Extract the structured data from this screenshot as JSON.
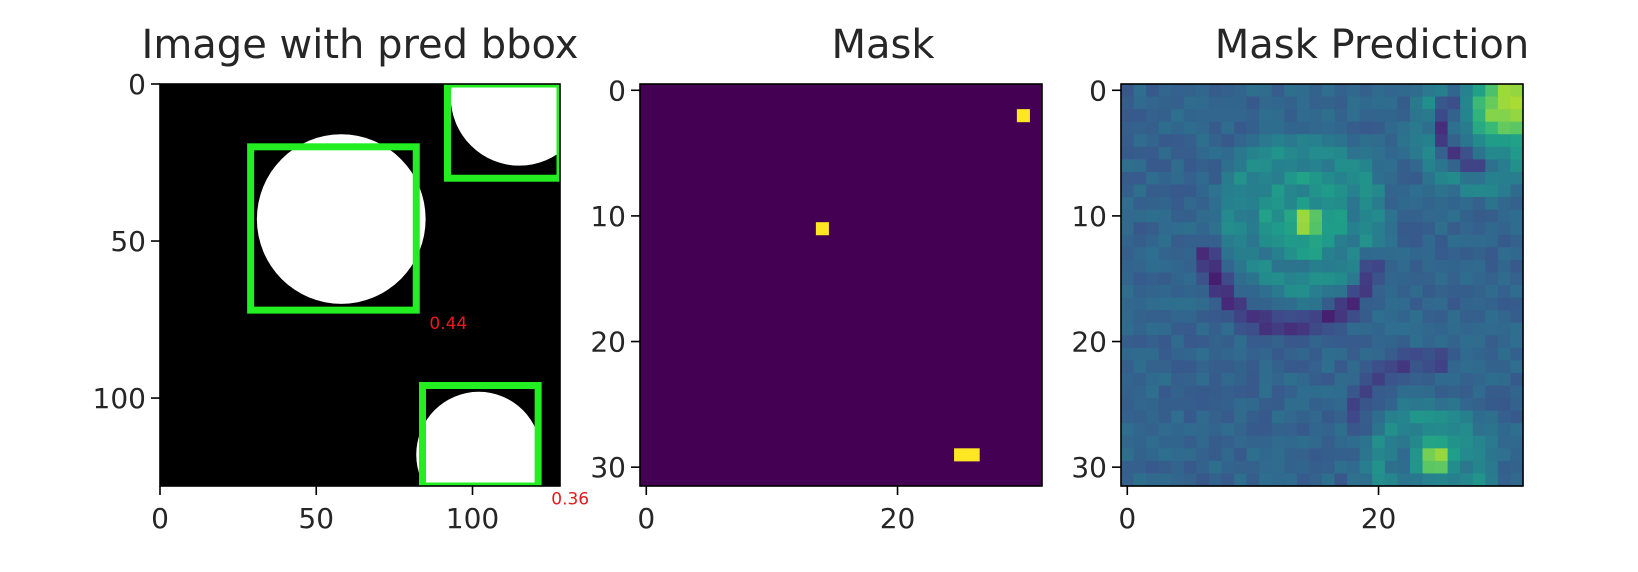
{
  "chart_data": [
    {
      "type": "heatmap",
      "title": "Image with pred bbox",
      "xlabel": "",
      "ylabel": "",
      "size": [
        128,
        128
      ],
      "xlim": [
        0,
        128
      ],
      "ylim": [
        128,
        0
      ],
      "x_ticks": [
        0,
        50,
        100
      ],
      "y_ticks": [
        0,
        50,
        100
      ],
      "x_tick_labels": [
        "0",
        "50",
        "100"
      ],
      "y_tick_labels": [
        "0",
        "50",
        "100"
      ],
      "background": "#000000",
      "box_color": "#22ee22",
      "circles": [
        {
          "cx": 58,
          "cy": 43,
          "r": 27
        },
        {
          "cx": 115,
          "cy": 4,
          "r": 22
        },
        {
          "cx": 102,
          "cy": 118,
          "r": 20
        }
      ],
      "boxes": [
        {
          "x1": 29,
          "y1": 20,
          "x2": 82,
          "y2": 72,
          "score": "0.44"
        },
        {
          "x1": 92,
          "y1": 0,
          "x2": 128,
          "y2": 30,
          "score": ""
        },
        {
          "x1": 84,
          "y1": 96,
          "x2": 121,
          "y2": 128,
          "score": "0.36"
        }
      ],
      "score_color": "#e41a1c"
    },
    {
      "type": "heatmap",
      "title": "Mask",
      "xlabel": "",
      "ylabel": "",
      "size": [
        32,
        32
      ],
      "x_ticks": [
        0,
        20
      ],
      "y_ticks": [
        0,
        10,
        20,
        30
      ],
      "x_tick_labels": [
        "0",
        "20"
      ],
      "y_tick_labels": [
        "0",
        "10",
        "20",
        "30"
      ],
      "colormap": "viridis",
      "background_value": 0,
      "hot_cells": [
        [
          30,
          2
        ],
        [
          14,
          11
        ],
        [
          25,
          29
        ],
        [
          26,
          29
        ]
      ]
    },
    {
      "type": "heatmap",
      "title": "Mask Prediction",
      "xlabel": "",
      "ylabel": "",
      "size": [
        32,
        32
      ],
      "x_ticks": [
        0,
        20
      ],
      "y_ticks": [
        0,
        10,
        20,
        30
      ],
      "x_tick_labels": [
        "0",
        "20"
      ],
      "y_tick_labels": [
        "0",
        "10",
        "20",
        "30"
      ],
      "colormap": "viridis",
      "baseline": 0.32,
      "blobs": [
        {
          "x": 14.2,
          "y": 10.4,
          "s": 0.9,
          "a": 0.62
        },
        {
          "x": 30,
          "y": 1.5,
          "s": 2.0,
          "a": 0.55
        },
        {
          "x": 24.5,
          "y": 29.3,
          "s": 1.1,
          "a": 0.55
        }
      ],
      "rings": [
        {
          "x": 14,
          "y": 10,
          "r": 2.8,
          "w": 0.75,
          "a": 0.22
        },
        {
          "x": 14,
          "y": 10,
          "r": 5.5,
          "w": 0.9,
          "a": 0.16
        },
        {
          "x": 28,
          "y": 3,
          "r": 4.5,
          "w": 0.8,
          "a": 0.14
        },
        {
          "x": 24,
          "y": 30,
          "r": 4.0,
          "w": 0.9,
          "a": 0.16
        }
      ],
      "troughs": [
        {
          "x": 13,
          "y": 12,
          "r": 6.8,
          "w": 0.6,
          "a": -0.2,
          "from": 0.15,
          "to": 3.0
        },
        {
          "x": 28,
          "y": 3,
          "r": 3.0,
          "w": 0.6,
          "a": -0.2,
          "from": 1.4,
          "to": 4.2
        },
        {
          "x": 24,
          "y": 28,
          "r": 6.5,
          "w": 0.6,
          "a": -0.12,
          "from": 3.3,
          "to": 5.0
        }
      ]
    }
  ]
}
